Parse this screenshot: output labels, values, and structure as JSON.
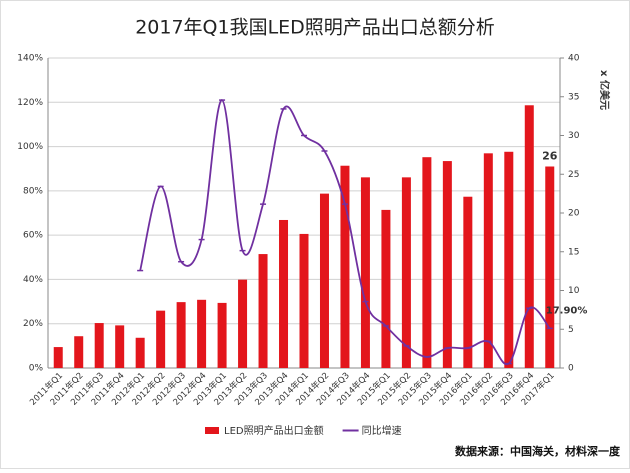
{
  "chart_data": {
    "type": "bar-line",
    "title": "2017年Q1我国LED照明产品出口总额分析",
    "y2_label": "x 亿美元",
    "source": "数据来源：中国海关，材料深一度",
    "categories": [
      "2011年Q1",
      "2011年Q2",
      "2011年Q3",
      "2011年Q4",
      "2012年Q1",
      "2012年Q2",
      "2012年Q3",
      "2012年Q4",
      "2013年Q1",
      "2013年Q2",
      "2013年Q3",
      "2013年Q4",
      "2014年Q1",
      "2014年Q2",
      "2014年Q3",
      "2014年Q4",
      "2015年Q1",
      "2015年Q2",
      "2015年Q3",
      "2015年Q4",
      "2016年Q1",
      "2016年Q2",
      "2016年Q3",
      "2016年Q4",
      "2017年Q1"
    ],
    "series": [
      {
        "name": "LED照明产品出口金额",
        "type": "bar",
        "axis": "y2",
        "color": "#e3161c",
        "values": [
          2.7,
          4.1,
          5.8,
          5.5,
          3.9,
          7.4,
          8.5,
          8.8,
          8.4,
          11.4,
          14.7,
          19.1,
          17.3,
          22.5,
          26.1,
          24.6,
          20.4,
          24.6,
          27.2,
          26.7,
          22.1,
          27.7,
          27.9,
          33.9,
          26
        ],
        "value_labels": [
          null,
          null,
          null,
          null,
          null,
          null,
          null,
          null,
          null,
          null,
          null,
          null,
          null,
          null,
          null,
          null,
          null,
          null,
          null,
          null,
          null,
          null,
          null,
          null,
          "26"
        ]
      },
      {
        "name": "同比增速",
        "type": "line",
        "axis": "y",
        "color": "#7030a0",
        "values": [
          null,
          null,
          null,
          null,
          44,
          82,
          48,
          58,
          121,
          53,
          74,
          117,
          105,
          98,
          74,
          30,
          19,
          10,
          5,
          9,
          9,
          12,
          2,
          27,
          17.9
        ],
        "value_labels": [
          null,
          null,
          null,
          null,
          null,
          null,
          null,
          null,
          null,
          null,
          null,
          null,
          null,
          null,
          null,
          null,
          null,
          null,
          null,
          null,
          null,
          null,
          null,
          null,
          "17.90%"
        ]
      }
    ],
    "ylim": [
      0,
      140
    ],
    "yticks": [
      {
        "value": 0,
        "label": "0%"
      },
      {
        "value": 20,
        "label": "20%"
      },
      {
        "value": 40,
        "label": "40%"
      },
      {
        "value": 60,
        "label": "60%"
      },
      {
        "value": 80,
        "label": "80%"
      },
      {
        "value": 100,
        "label": "100%"
      },
      {
        "value": 120,
        "label": "120%"
      },
      {
        "value": 140,
        "label": "140%"
      }
    ],
    "y2lim": [
      0,
      40
    ],
    "y2ticks": [
      0,
      5,
      10,
      15,
      20,
      25,
      30,
      35,
      40
    ],
    "grid": true,
    "legend": "bottom"
  }
}
